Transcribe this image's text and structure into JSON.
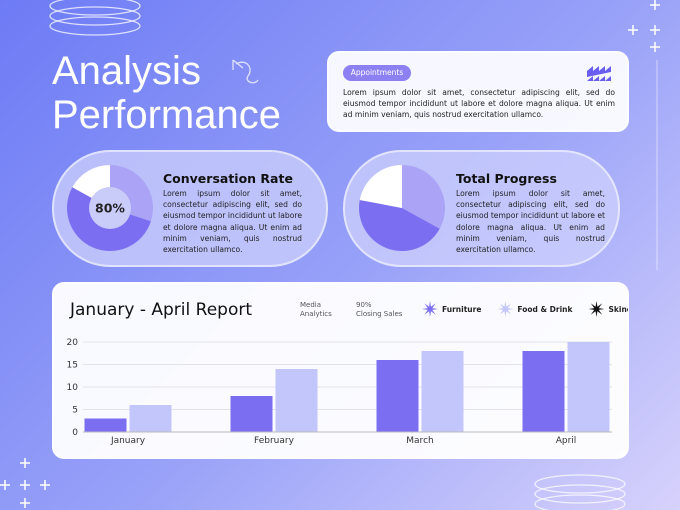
{
  "header": {
    "title": [
      "Analysis",
      "Performance"
    ]
  },
  "appointments": {
    "badge": "Appointments",
    "text": "Lorem ipsum dolor sit amet, consectetur adipiscing elit, sed do eiusmod tempor incididunt ut labore et dolore magna aliqua. Ut enim ad minim veniam, quis nostrud exercitation ullamco."
  },
  "chart_data": [
    {
      "type": "pie",
      "title": "Conversation Rate",
      "center_label": "80%",
      "description": "Lorem ipsum dolor sit amet, consectetur adipiscing elit, sed do eiusmod tempor incididunt ut labore et dolore magna aliqua. Ut enim ad minim veniam, quis nostrud exercitation ullamco.",
      "values": [
        30,
        53,
        17
      ],
      "colors": [
        "#aaa3f6",
        "#7c6ef0",
        "#ffffff"
      ]
    },
    {
      "type": "pie",
      "title": "Total Progress",
      "description": "Lorem ipsum dolor sit amet, consectetur adipiscing elit, sed do eiusmod tempor incididunt ut labore et dolore magna aliqua. Ut enim ad minim veniam, quis nostrud exercitation ullamco.",
      "values": [
        33,
        45,
        22
      ],
      "colors": [
        "#aaa3f6",
        "#7c6ef0",
        "#ffffff"
      ]
    },
    {
      "type": "bar",
      "title": "January - April Report",
      "notes": [
        [
          "Media",
          "Analytics"
        ],
        [
          "90%",
          "Closing Sales"
        ]
      ],
      "categories": [
        "January",
        "February",
        "March",
        "April"
      ],
      "series": [
        {
          "name": "Furniture",
          "color": "#7c6ef0",
          "values": [
            3,
            8,
            16,
            18
          ]
        },
        {
          "name": "Food & Drink",
          "color": "#c3c6fb",
          "values": [
            6,
            14,
            18,
            20
          ]
        }
      ],
      "extra_legend": {
        "name": "Skincare",
        "color": "#111111"
      },
      "ylim": [
        0,
        20
      ],
      "yticks": [
        0,
        5,
        10,
        15,
        20
      ],
      "grid": true
    }
  ]
}
